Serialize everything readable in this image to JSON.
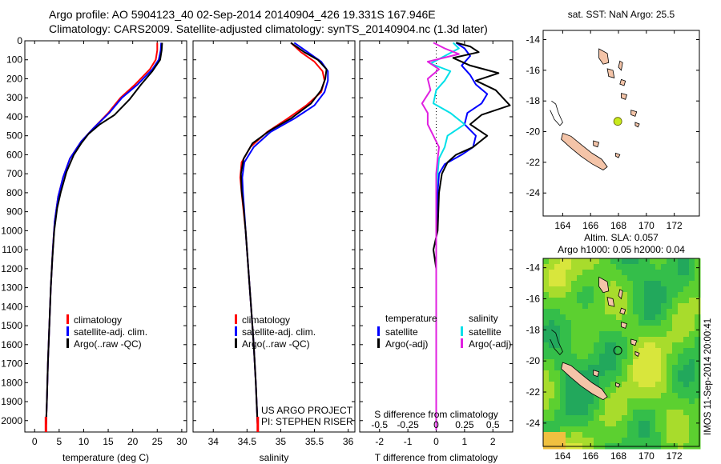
{
  "header": {
    "line1": "Argo profile: AO 5904123_40 02-Sep-2014 20140904_426 19.331S 167.946E",
    "line2": "Climatology: CARS2009. Satellite-adjusted climatology: synTS_20140904.nc (1.3d later)"
  },
  "footer_note": "IMOS 11-Sep-2014 20:00:41",
  "colors": {
    "climatology": "#ff0000",
    "satellite": "#0000ff",
    "argo": "#000000",
    "sal_satellite": "#00e0e8",
    "sal_argo": "#e020e0",
    "land": "#f4c4a8",
    "marker": "#c8ea1c"
  },
  "depth_axis": {
    "ticks": [
      0,
      100,
      200,
      300,
      400,
      500,
      600,
      700,
      800,
      900,
      1000,
      1100,
      1200,
      1300,
      1400,
      1500,
      1600,
      1700,
      1800,
      1900,
      2000
    ],
    "range": [
      0,
      2060
    ]
  },
  "chart_data": [
    {
      "type": "line",
      "name": "temperature",
      "xlabel": "temperature (deg C)",
      "xlim": [
        -2,
        31
      ],
      "xticks": [
        0,
        5,
        10,
        15,
        20,
        25,
        30
      ],
      "ylabel": "",
      "y_inverted": true,
      "legend": [
        "climatology",
        "satellite-adj. clim.",
        "Argo(..raw -QC)"
      ],
      "series": [
        {
          "name": "climatology",
          "color": "#ff0000",
          "points": [
            [
              25,
              10
            ],
            [
              25,
              50
            ],
            [
              24.7,
              100
            ],
            [
              23.5,
              150
            ],
            [
              20.5,
              230
            ],
            [
              17.5,
              300
            ],
            [
              15,
              380
            ],
            [
              12,
              460
            ],
            [
              9.5,
              530
            ],
            [
              7.2,
              620
            ],
            [
              5.8,
              720
            ],
            [
              4.8,
              820
            ],
            [
              4.1,
              950
            ],
            [
              3.7,
              1100
            ],
            [
              3.3,
              1300
            ],
            [
              3.0,
              1500
            ],
            [
              2.7,
              1700
            ],
            [
              2.5,
              1900
            ],
            [
              2.3,
              2050
            ]
          ]
        },
        {
          "name": "satellite-adj. clim.",
          "color": "#0000ff",
          "points": [
            [
              25.8,
              10
            ],
            [
              25.7,
              50
            ],
            [
              25.3,
              100
            ],
            [
              24,
              150
            ],
            [
              21,
              230
            ],
            [
              17.8,
              300
            ],
            [
              15.2,
              380
            ],
            [
              12,
              460
            ],
            [
              9.5,
              530
            ],
            [
              7.2,
              620
            ],
            [
              5.8,
              720
            ],
            [
              4.8,
              820
            ],
            [
              4.1,
              950
            ],
            [
              3.7,
              1100
            ],
            [
              3.3,
              1300
            ],
            [
              3.0,
              1500
            ],
            [
              2.7,
              1700
            ],
            [
              2.5,
              1900
            ],
            [
              2.3,
              2050
            ]
          ]
        },
        {
          "name": "Argo(..raw -QC)",
          "color": "#000000",
          "points": [
            [
              26,
              10
            ],
            [
              25.9,
              50
            ],
            [
              25.6,
              100
            ],
            [
              24,
              160
            ],
            [
              21.7,
              230
            ],
            [
              19.3,
              310
            ],
            [
              16.3,
              390
            ],
            [
              13.3,
              440
            ],
            [
              11,
              490
            ],
            [
              9.5,
              540
            ],
            [
              8,
              600
            ],
            [
              6.5,
              690
            ],
            [
              5.3,
              800
            ],
            [
              4.6,
              880
            ],
            [
              4,
              1000
            ],
            [
              3.6,
              1150
            ],
            [
              3.3,
              1300
            ],
            [
              3.0,
              1500
            ],
            [
              2.7,
              1700
            ],
            [
              2.5,
              1900
            ],
            [
              2.3,
              2050
            ]
          ]
        }
      ]
    },
    {
      "type": "line",
      "name": "salinity",
      "xlabel": "salinity",
      "xlim": [
        33.7,
        36.1
      ],
      "xticks": [
        34,
        34.5,
        35,
        35.5,
        36
      ],
      "xticklabels": [
        "34",
        "34.5",
        "35",
        "35.5",
        "36"
      ],
      "y_inverted": true,
      "legend": [
        "climatology",
        "satellite-adj. clim.",
        "Argo(..raw -QC)"
      ],
      "credits": [
        "US ARGO PROJECT",
        "PI: STEPHEN RISER"
      ],
      "series": [
        {
          "name": "climatology",
          "color": "#ff0000",
          "points": [
            [
              35.15,
              10
            ],
            [
              35.3,
              60
            ],
            [
              35.5,
              110
            ],
            [
              35.62,
              160
            ],
            [
              35.65,
              210
            ],
            [
              35.6,
              270
            ],
            [
              35.38,
              340
            ],
            [
              35.1,
              410
            ],
            [
              34.8,
              480
            ],
            [
              34.55,
              560
            ],
            [
              34.42,
              640
            ],
            [
              34.4,
              720
            ],
            [
              34.42,
              800
            ],
            [
              34.45,
              900
            ],
            [
              34.48,
              1000
            ],
            [
              34.52,
              1200
            ],
            [
              34.56,
              1400
            ],
            [
              34.6,
              1600
            ],
            [
              34.63,
              1800
            ],
            [
              34.66,
              2050
            ]
          ]
        },
        {
          "name": "satellite-adj. clim.",
          "color": "#0000ff",
          "points": [
            [
              35.2,
              10
            ],
            [
              35.4,
              60
            ],
            [
              35.6,
              110
            ],
            [
              35.7,
              160
            ],
            [
              35.7,
              210
            ],
            [
              35.65,
              270
            ],
            [
              35.5,
              340
            ],
            [
              35.2,
              410
            ],
            [
              34.85,
              480
            ],
            [
              34.6,
              560
            ],
            [
              34.46,
              640
            ],
            [
              34.43,
              720
            ],
            [
              34.44,
              800
            ],
            [
              34.46,
              900
            ],
            [
              34.48,
              1000
            ],
            [
              34.52,
              1200
            ],
            [
              34.56,
              1400
            ],
            [
              34.6,
              1600
            ],
            [
              34.63,
              1800
            ],
            [
              34.66,
              2050
            ]
          ]
        },
        {
          "name": "Argo(..raw -QC)",
          "color": "#000000",
          "points": [
            [
              35.15,
              10
            ],
            [
              35.35,
              60
            ],
            [
              35.55,
              100
            ],
            [
              35.68,
              150
            ],
            [
              35.66,
              200
            ],
            [
              35.6,
              260
            ],
            [
              35.45,
              330
            ],
            [
              35.15,
              410
            ],
            [
              34.85,
              470
            ],
            [
              34.58,
              540
            ],
            [
              34.45,
              620
            ],
            [
              34.41,
              700
            ],
            [
              34.42,
              790
            ],
            [
              34.45,
              880
            ],
            [
              34.48,
              1000
            ],
            [
              34.52,
              1200
            ],
            [
              34.56,
              1400
            ],
            [
              34.6,
              1600
            ],
            [
              34.63,
              1800
            ],
            [
              34.66,
              2050
            ]
          ]
        }
      ]
    },
    {
      "type": "line",
      "name": "differences",
      "xlabel": "T difference from climatology",
      "xlabel2": "S difference from climatology",
      "xlim": [
        -2.7,
        2.7
      ],
      "xticks": [
        -2,
        -1,
        0,
        1,
        2
      ],
      "xticklabels2": [
        "-0.5",
        "-0.25",
        "0",
        "0.25",
        "0.5"
      ],
      "y_inverted": true,
      "legend_groups": [
        {
          "title": "temperature",
          "items": [
            "satellite",
            "Argo(-adj)"
          ]
        },
        {
          "title": "salinity",
          "items": [
            "satellite",
            "Argo(-adj)"
          ]
        }
      ],
      "series": [
        {
          "name": "temperature satellite",
          "color": "#0000ff",
          "points": [
            [
              0.7,
              10
            ],
            [
              1,
              40
            ],
            [
              1.2,
              80
            ],
            [
              0.9,
              130
            ],
            [
              1.2,
              180
            ],
            [
              1.4,
              230
            ],
            [
              1.8,
              280
            ],
            [
              1.6,
              330
            ],
            [
              1.1,
              380
            ],
            [
              1,
              440
            ],
            [
              1.4,
              500
            ],
            [
              1.3,
              560
            ],
            [
              0.9,
              600
            ],
            [
              0.3,
              650
            ],
            [
              0.1,
              700
            ],
            [
              0.05,
              800
            ],
            [
              0,
              1000
            ],
            [
              0,
              2050
            ]
          ]
        },
        {
          "name": "temperature Argo(-adj)",
          "color": "#000000",
          "points": [
            [
              0.7,
              10
            ],
            [
              1.2,
              30
            ],
            [
              1.5,
              60
            ],
            [
              0.6,
              90
            ],
            [
              1.2,
              130
            ],
            [
              2.2,
              170
            ],
            [
              1.4,
              210
            ],
            [
              2.1,
              260
            ],
            [
              2.6,
              340
            ],
            [
              1.6,
              390
            ],
            [
              1.2,
              440
            ],
            [
              1.8,
              500
            ],
            [
              1.3,
              560
            ],
            [
              0.7,
              600
            ],
            [
              0.4,
              640
            ],
            [
              0.2,
              700
            ],
            [
              0.1,
              800
            ],
            [
              0.05,
              1000
            ],
            [
              -0.1,
              1100
            ],
            [
              0,
              1200
            ],
            [
              0,
              2050
            ]
          ]
        },
        {
          "name": "salinity satellite",
          "color": "#00e0e8",
          "points": [
            [
              0.6,
              10
            ],
            [
              0.8,
              40
            ],
            [
              0.3,
              80
            ],
            [
              -0.2,
              120
            ],
            [
              0.5,
              160
            ],
            [
              0.3,
              210
            ],
            [
              0,
              260
            ],
            [
              -0.1,
              330
            ],
            [
              0.5,
              380
            ],
            [
              1,
              440
            ],
            [
              0.4,
              500
            ],
            [
              0.3,
              560
            ],
            [
              0.1,
              620
            ],
            [
              0.05,
              700
            ],
            [
              0,
              800
            ],
            [
              0,
              1000
            ],
            [
              0,
              2050
            ]
          ]
        },
        {
          "name": "salinity Argo(-adj)",
          "color": "#e020e0",
          "points": [
            [
              -0.1,
              10
            ],
            [
              0.3,
              40
            ],
            [
              0.8,
              70
            ],
            [
              -0.3,
              110
            ],
            [
              0.1,
              150
            ],
            [
              -0.3,
              200
            ],
            [
              -0.2,
              260
            ],
            [
              -0.5,
              330
            ],
            [
              -0.3,
              380
            ],
            [
              -0.3,
              440
            ],
            [
              -0.1,
              500
            ],
            [
              0.1,
              560
            ],
            [
              0.05,
              620
            ],
            [
              0,
              700
            ],
            [
              0,
              2050
            ]
          ]
        }
      ]
    }
  ],
  "maps": [
    {
      "title": "sat. SST: NaN Argo: 25.5",
      "xticks": [
        164,
        166,
        168,
        170,
        172
      ],
      "yticks": [
        -14,
        -16,
        -18,
        -20,
        -22,
        -24
      ],
      "xlim": [
        162.6,
        173.8
      ],
      "ylim": [
        -25.5,
        -13.4
      ],
      "marker": [
        167.95,
        -19.33
      ]
    },
    {
      "title_line1": "Altim. SLA: 0.057",
      "title_line2": "Argo h1000: 0.05 h2000: 0.04",
      "xticks": [
        164,
        166,
        168,
        170,
        172
      ],
      "yticks": [
        -14,
        -16,
        -18,
        -20,
        -22,
        -24
      ],
      "xlim": [
        162.6,
        173.8
      ],
      "ylim": [
        -25.5,
        -13.4
      ],
      "marker": [
        167.95,
        -19.33
      ]
    }
  ]
}
